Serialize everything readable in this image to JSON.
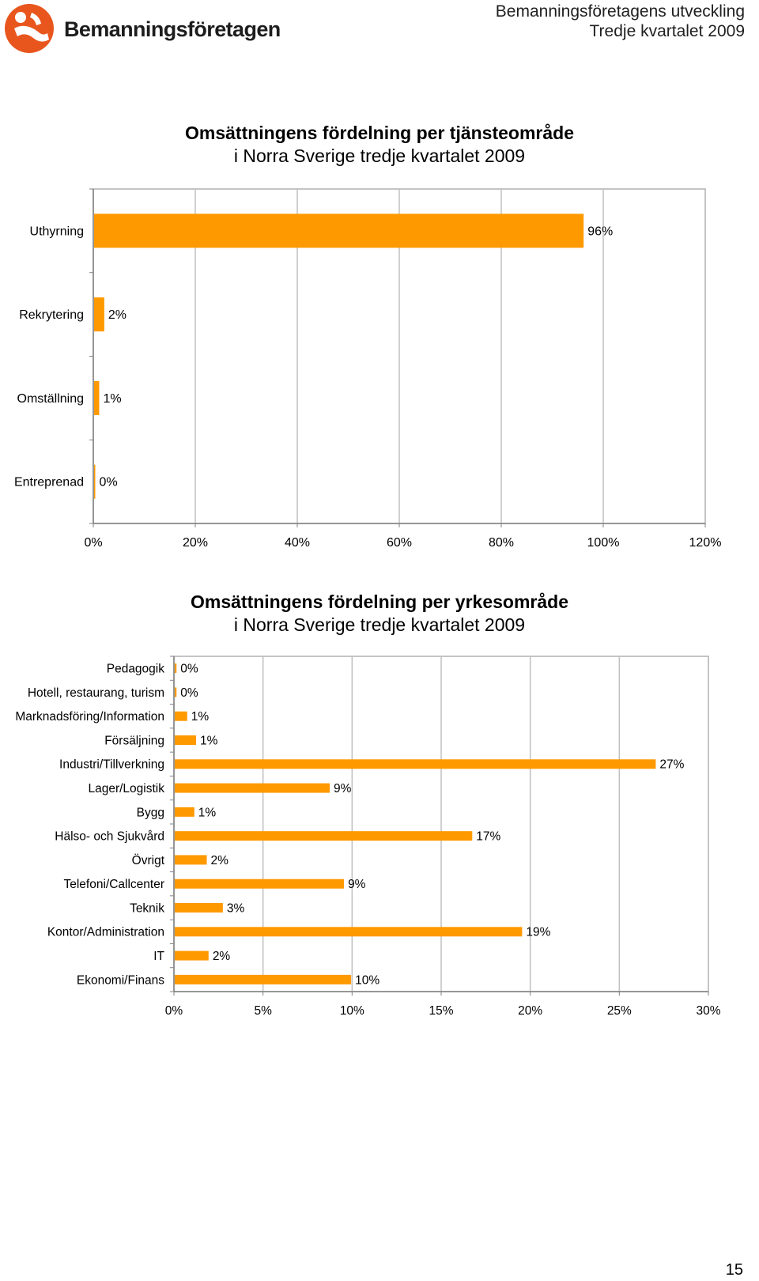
{
  "header": {
    "logo_text": "Bemanningsföretagen",
    "line1": "Bemanningsföretagens utveckling",
    "line2": "Tredje kvartalet 2009"
  },
  "colors": {
    "bar": "#FF9900",
    "logo": "#E8561E",
    "grid": "#c0c0c0"
  },
  "page_number": "15",
  "chart_data": [
    {
      "type": "bar",
      "orientation": "horizontal",
      "title": "Omsättningens fördelning per tjänsteområde",
      "subtitle": "i Norra Sverige tredje kvartalet 2009",
      "categories": [
        "Uthyrning",
        "Rekrytering",
        "Omställning",
        "Entreprenad"
      ],
      "values": [
        96,
        2,
        1,
        0
      ],
      "data_labels": [
        "96%",
        "2%",
        "1%",
        "0%"
      ],
      "xlim": [
        0,
        120
      ],
      "ticks": [
        0,
        20,
        40,
        60,
        80,
        100,
        120
      ],
      "tick_labels": [
        "0%",
        "20%",
        "40%",
        "60%",
        "80%",
        "100%",
        "120%"
      ],
      "grid": true,
      "legend": "none"
    },
    {
      "type": "bar",
      "orientation": "horizontal",
      "title": "Omsättningens fördelning per yrkesområde",
      "subtitle": "i Norra Sverige tredje kvartalet 2009",
      "categories": [
        "Pedagogik",
        "Hotell, restaurang, turism",
        "Marknadsföring/Information",
        "Försäljning",
        "Industri/Tillverkning",
        "Lager/Logistik",
        "Bygg",
        "Hälso- och Sjukvård",
        "Övrigt",
        "Telefoni/Callcenter",
        "Teknik",
        "Kontor/Administration",
        "IT",
        "Ekonomi/Finans"
      ],
      "values": [
        0.1,
        0.1,
        0.7,
        1.2,
        27,
        8.7,
        1.1,
        16.7,
        1.8,
        9.5,
        2.7,
        19.5,
        1.9,
        9.9
      ],
      "data_labels": [
        "0%",
        "0%",
        "1%",
        "1%",
        "27%",
        "9%",
        "1%",
        "17%",
        "2%",
        "9%",
        "3%",
        "19%",
        "2%",
        "10%"
      ],
      "xlim": [
        0,
        30
      ],
      "ticks": [
        0,
        5,
        10,
        15,
        20,
        25,
        30
      ],
      "tick_labels": [
        "0%",
        "5%",
        "10%",
        "15%",
        "20%",
        "25%",
        "30%"
      ],
      "grid": true,
      "legend": "none"
    }
  ]
}
